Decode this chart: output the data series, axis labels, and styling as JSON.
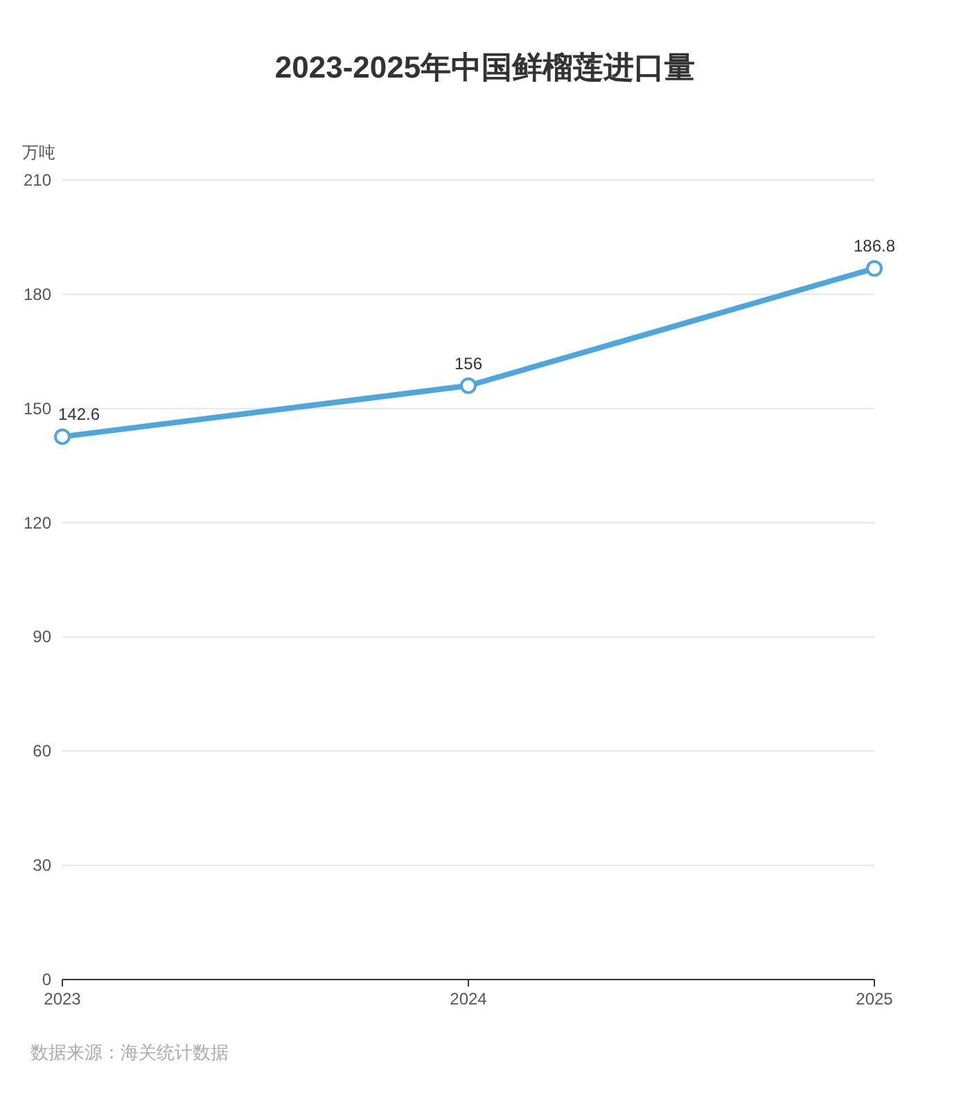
{
  "chart_data": {
    "type": "line",
    "title": "2023-2025年中国鲜榴莲进口量",
    "ylabel": "万吨",
    "categories": [
      "2023",
      "2024",
      "2025"
    ],
    "series": [
      {
        "color": "#4ea6dc",
        "values": [
          142.6,
          156,
          186.8
        ]
      }
    ],
    "ylim": [
      0,
      210
    ],
    "yticks": [
      0,
      30,
      60,
      90,
      120,
      150,
      180,
      210
    ],
    "grid": "y",
    "data_labels": true,
    "marker": "circle",
    "line_style": "solid",
    "annotations": [
      "数据来源：海关统计数据"
    ]
  }
}
